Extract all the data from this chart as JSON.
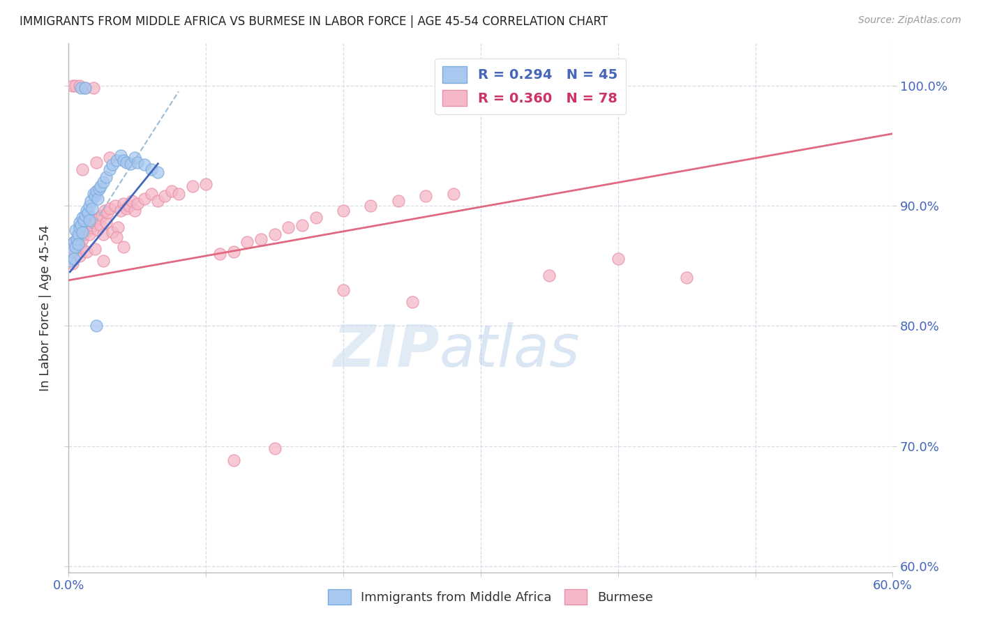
{
  "title": "IMMIGRANTS FROM MIDDLE AFRICA VS BURMESE IN LABOR FORCE | AGE 45-54 CORRELATION CHART",
  "source": "Source: ZipAtlas.com",
  "ylabel": "In Labor Force | Age 45-54",
  "xlim": [
    0.0,
    0.6
  ],
  "ylim": [
    0.595,
    1.035
  ],
  "xticks": [
    0.0,
    0.1,
    0.2,
    0.3,
    0.4,
    0.5,
    0.6
  ],
  "yticks": [
    0.6,
    0.7,
    0.8,
    0.9,
    1.0
  ],
  "xtick_labels": [
    "0.0%",
    "",
    "",
    "",
    "",
    "",
    "60.0%"
  ],
  "ytick_labels": [
    "60.0%",
    "70.0%",
    "80.0%",
    "90.0%",
    "100.0%"
  ],
  "blue_color": "#a8c8f0",
  "pink_color": "#f5b8c8",
  "blue_edge_color": "#7aabde",
  "pink_edge_color": "#e890a8",
  "blue_line_color": "#4466bb",
  "pink_line_color": "#e06880",
  "dashed_line_color": "#9bbcd8",
  "legend_blue_R": "R = 0.294",
  "legend_blue_N": "N = 45",
  "legend_pink_R": "R = 0.360",
  "legend_pink_N": "N = 78",
  "blue_scatter_x": [
    0.001,
    0.003,
    0.004,
    0.004,
    0.005,
    0.005,
    0.006,
    0.007,
    0.007,
    0.008,
    0.008,
    0.009,
    0.01,
    0.01,
    0.011,
    0.012,
    0.013,
    0.014,
    0.015,
    0.015,
    0.016,
    0.017,
    0.018,
    0.019,
    0.02,
    0.021,
    0.022,
    0.023,
    0.025,
    0.027,
    0.03,
    0.032,
    0.035,
    0.038,
    0.04,
    0.042,
    0.045,
    0.048,
    0.05,
    0.055,
    0.06,
    0.065,
    0.009,
    0.012,
    0.02
  ],
  "blue_scatter_y": [
    0.854,
    0.862,
    0.87,
    0.856,
    0.88,
    0.866,
    0.872,
    0.876,
    0.868,
    0.882,
    0.886,
    0.884,
    0.878,
    0.89,
    0.888,
    0.892,
    0.896,
    0.894,
    0.9,
    0.888,
    0.904,
    0.898,
    0.91,
    0.908,
    0.912,
    0.906,
    0.914,
    0.916,
    0.92,
    0.924,
    0.93,
    0.934,
    0.938,
    0.942,
    0.938,
    0.936,
    0.935,
    0.94,
    0.936,
    0.934,
    0.93,
    0.928,
    0.998,
    0.998,
    0.8
  ],
  "pink_scatter_x": [
    0.001,
    0.002,
    0.003,
    0.004,
    0.005,
    0.006,
    0.007,
    0.008,
    0.009,
    0.01,
    0.011,
    0.012,
    0.013,
    0.014,
    0.015,
    0.016,
    0.017,
    0.018,
    0.019,
    0.02,
    0.021,
    0.022,
    0.023,
    0.024,
    0.025,
    0.026,
    0.027,
    0.028,
    0.03,
    0.032,
    0.034,
    0.036,
    0.038,
    0.04,
    0.042,
    0.044,
    0.046,
    0.048,
    0.05,
    0.055,
    0.06,
    0.065,
    0.07,
    0.075,
    0.08,
    0.09,
    0.1,
    0.11,
    0.12,
    0.13,
    0.14,
    0.15,
    0.16,
    0.17,
    0.18,
    0.2,
    0.22,
    0.24,
    0.26,
    0.28,
    0.35,
    0.4,
    0.45,
    0.003,
    0.005,
    0.008,
    0.012,
    0.018,
    0.025,
    0.035,
    0.04,
    0.01,
    0.02,
    0.03,
    0.2,
    0.25,
    0.15,
    0.12
  ],
  "pink_scatter_y": [
    0.856,
    0.864,
    0.852,
    0.87,
    0.86,
    0.868,
    0.874,
    0.858,
    0.866,
    0.872,
    0.876,
    0.878,
    0.862,
    0.88,
    0.876,
    0.882,
    0.884,
    0.886,
    0.864,
    0.888,
    0.88,
    0.89,
    0.884,
    0.892,
    0.876,
    0.896,
    0.886,
    0.894,
    0.898,
    0.878,
    0.9,
    0.882,
    0.896,
    0.902,
    0.898,
    0.9,
    0.904,
    0.896,
    0.902,
    0.906,
    0.91,
    0.904,
    0.908,
    0.912,
    0.91,
    0.916,
    0.918,
    0.86,
    0.862,
    0.87,
    0.872,
    0.876,
    0.882,
    0.884,
    0.89,
    0.896,
    0.9,
    0.904,
    0.908,
    0.91,
    0.842,
    0.856,
    0.84,
    1.0,
    1.0,
    1.0,
    0.998,
    0.998,
    0.854,
    0.874,
    0.866,
    0.93,
    0.936,
    0.94,
    0.83,
    0.82,
    0.698,
    0.688
  ],
  "blue_trend_x": [
    0.001,
    0.065
  ],
  "blue_trend_y": [
    0.845,
    0.935
  ],
  "pink_trend_x": [
    0.0,
    0.6
  ],
  "pink_trend_y": [
    0.838,
    0.96
  ],
  "dashed_trend_x": [
    0.01,
    0.08
  ],
  "dashed_trend_y": [
    0.87,
    0.995
  ],
  "watermark_zip": "ZIP",
  "watermark_atlas": "atlas",
  "background_color": "#ffffff",
  "grid_color": "#d8dce8",
  "axis_label_color": "#4466bb",
  "title_color": "#222222"
}
